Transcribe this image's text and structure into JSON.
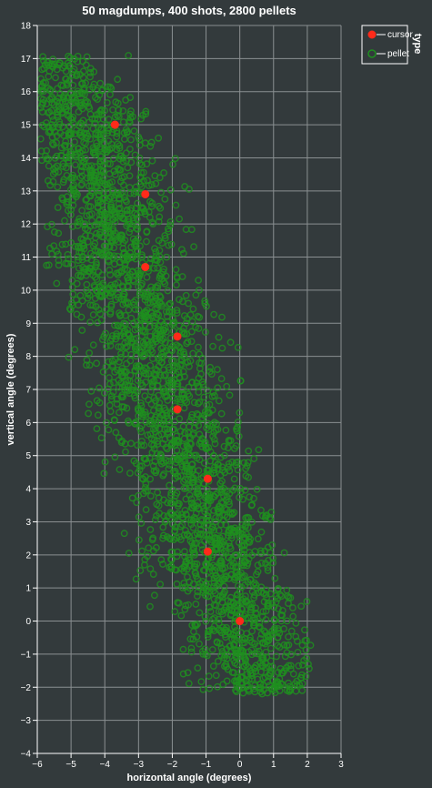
{
  "chart_data": {
    "type": "scatter",
    "title": "50 magdumps, 400 shots, 2800 pellets",
    "xlabel": "horizontal angle (degrees)",
    "ylabel": "vertical angle (degrees)",
    "xlim": [
      -6,
      3
    ],
    "ylim": [
      -4,
      18
    ],
    "xticks": [
      -6,
      -5,
      -4,
      -3,
      -2,
      -1,
      0,
      1,
      2,
      3
    ],
    "yticks": [
      -4,
      -3,
      -2,
      -1,
      0,
      1,
      2,
      3,
      4,
      5,
      6,
      7,
      8,
      9,
      10,
      11,
      12,
      13,
      14,
      15,
      16,
      17,
      18
    ],
    "grid": true,
    "legend": {
      "title": "type",
      "placement": "top-right",
      "entries": [
        {
          "name": "cursor",
          "color": "#ff2a1a"
        },
        {
          "name": "pellet",
          "color": "#1f8f1f"
        }
      ]
    },
    "series": [
      {
        "name": "cursor",
        "color": "#ff2a1a",
        "points": [
          [
            0.0,
            0.0
          ],
          [
            -0.95,
            2.1
          ],
          [
            -0.95,
            4.3
          ],
          [
            -1.85,
            6.4
          ],
          [
            -1.85,
            8.6
          ],
          [
            -2.8,
            10.7
          ],
          [
            -2.8,
            12.9
          ],
          [
            -3.7,
            15.0
          ]
        ]
      },
      {
        "name": "pellet",
        "color": "#1f8f1f",
        "count": 2800,
        "spread_band": {
          "description_free": true,
          "centerline": [
            [
              0.0,
              0.0
            ],
            [
              -0.95,
              2.1
            ],
            [
              -0.95,
              4.3
            ],
            [
              -1.85,
              6.4
            ],
            [
              -1.85,
              8.6
            ],
            [
              -2.8,
              10.7
            ],
            [
              -2.8,
              12.9
            ],
            [
              -3.7,
              15.0
            ]
          ],
          "x_extent": [
            -5.9,
            2.1
          ],
          "y_extent": [
            -2.2,
            17.1
          ]
        }
      }
    ]
  }
}
